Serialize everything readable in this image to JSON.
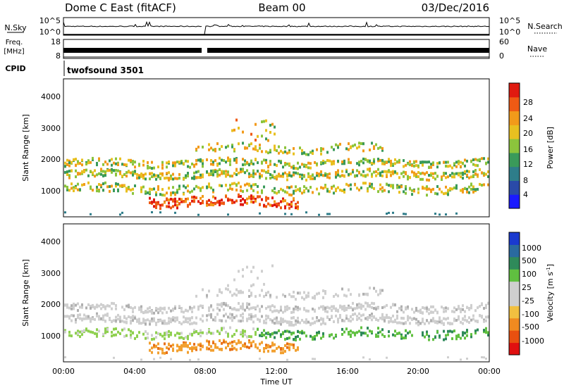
{
  "header": {
    "station": "Dome C East (fitACF)",
    "beam": "Beam 00",
    "date": "03/Dec/2016"
  },
  "strip_panels": {
    "nsky_label": "N.Sky",
    "nsky_ticks": [
      "10^5",
      "10^0"
    ],
    "nsearch_label": "N.Search",
    "freq_label_top": "Freq.",
    "freq_label_unit": "[MHz]",
    "freq_ticks": [
      "18",
      "8"
    ],
    "nave_label": "Nave",
    "nave_ticks": [
      "60",
      "0"
    ],
    "cpid_label": "CPID",
    "cpid_value": "twofsound 3501"
  },
  "chart_data": [
    {
      "type": "heatmap",
      "name": "Power",
      "ylabel": "Slant Range [km]",
      "xlabel": "Time UT",
      "x_ticks": [
        "00:00",
        "04:00",
        "08:00",
        "12:00",
        "16:00",
        "20:00",
        "00:00"
      ],
      "y_ticks": [
        1000,
        2000,
        3000,
        4000
      ],
      "ylim": [
        180,
        4500
      ],
      "colorbar_label": "Power [dB]",
      "colorbar_ticks": [
        "4",
        "8",
        "12",
        "16",
        "20",
        "24",
        "28"
      ],
      "colorbar_range": [
        0,
        30
      ],
      "colorbar_colors": [
        "#1a1aff",
        "#2a4aa8",
        "#2e7d8a",
        "#3a9a5a",
        "#8cc43c",
        "#e8c020",
        "#f29a1a",
        "#ef5a14",
        "#e01a10"
      ]
    },
    {
      "type": "heatmap",
      "name": "Velocity",
      "ylabel": "Slant Range [km]",
      "xlabel": "Time UT",
      "x_ticks": [
        "00:00",
        "04:00",
        "08:00",
        "12:00",
        "16:00",
        "20:00",
        "00:00"
      ],
      "y_ticks": [
        1000,
        2000,
        3000,
        4000
      ],
      "ylim": [
        180,
        4500
      ],
      "colorbar_label": "Velocity [m s",
      "colorbar_label_sup": "-1",
      "colorbar_label_end": "]",
      "colorbar_ticks": [
        "1000",
        "500",
        "100",
        "25",
        "-25",
        "-100",
        "-500",
        "-1000"
      ],
      "colorbar_colors": [
        "#1a3ad0",
        "#2a6aa0",
        "#2f8a5a",
        "#60c040",
        "#cfcfcf",
        "#cfcfcf",
        "#f2c040",
        "#f08a20",
        "#e85010",
        "#e01010"
      ]
    }
  ]
}
